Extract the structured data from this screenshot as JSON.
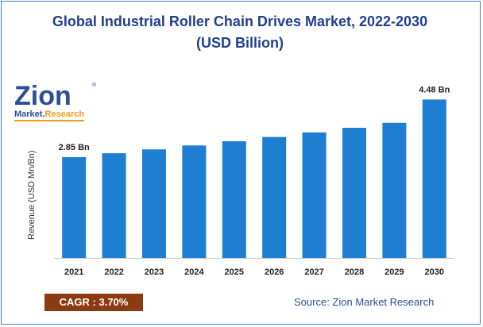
{
  "title_line1": "Global Industrial Roller Chain Drives Market, 2022-2030",
  "title_line2": "(USD Billion)",
  "logo": {
    "text": "Zion",
    "subtext_a": "Market.",
    "subtext_b": "Research",
    "reg_mark": "®"
  },
  "cagr": {
    "label": "CAGR : ",
    "value": "3.70%"
  },
  "source": "Source: Zion Market Research",
  "colors": {
    "bar": "#1d7ed2",
    "title": "#1f3f8f",
    "cagr_bg": "#8b3a12",
    "frame": "#3b7fd0"
  },
  "chart_data": {
    "type": "bar",
    "title": "Global Industrial Roller Chain Drives Market, 2022-2030 (USD Billion)",
    "xlabel": "",
    "ylabel": "Revenue (USD Mn/Bn)",
    "categories": [
      "2021",
      "2022",
      "2023",
      "2024",
      "2025",
      "2026",
      "2027",
      "2028",
      "2029",
      "2030"
    ],
    "values": [
      2.85,
      2.96,
      3.07,
      3.18,
      3.3,
      3.42,
      3.55,
      3.68,
      3.82,
      4.48
    ],
    "data_labels": [
      {
        "index": 0,
        "text": "2.85 Bn"
      },
      {
        "index": 9,
        "text": "4.48 Bn"
      }
    ],
    "ylim": [
      0,
      4.6
    ],
    "grid": false,
    "legend": "none"
  }
}
